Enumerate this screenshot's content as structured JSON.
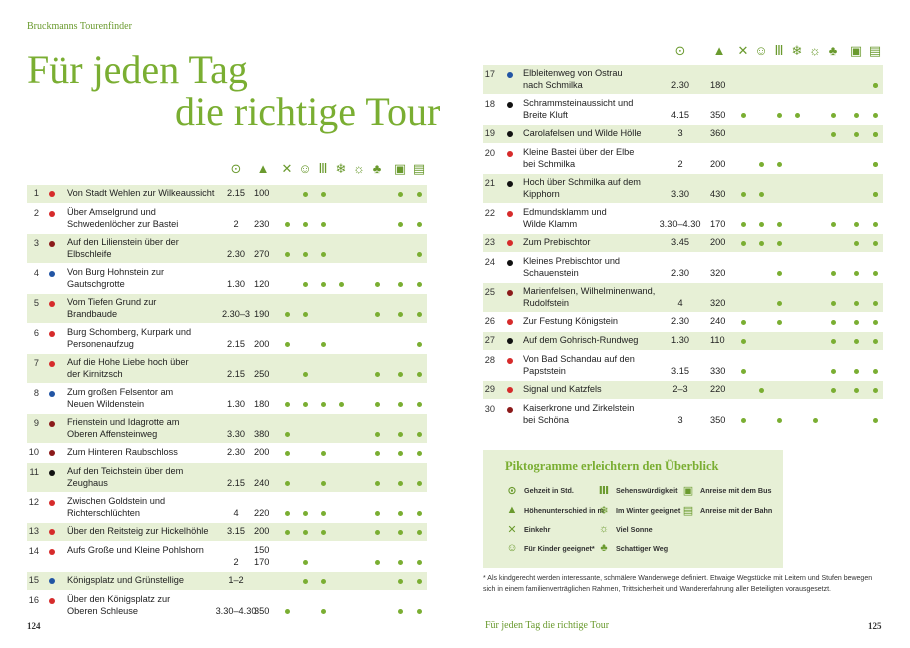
{
  "header": {
    "brand": "Bruckmanns Tourenfinder"
  },
  "title": {
    "line1": "Für jeden Tag",
    "line2": "die richtige Tour"
  },
  "colors": {
    "accent": "#7aae32",
    "shade": "#e7f0d6",
    "bullet_red": "#d62b2b",
    "bullet_blue": "#2255a4",
    "bullet_black": "#111111",
    "bullet_darkred": "#8b1a1a"
  },
  "columns": [
    {
      "icon": "clock-icon",
      "glyph": "⊙"
    },
    {
      "icon": "mountain-icon",
      "glyph": "▲"
    },
    {
      "icon": "fork-knife-icon",
      "glyph": "✕"
    },
    {
      "icon": "smiley-icon",
      "glyph": "☺"
    },
    {
      "icon": "monument-icon",
      "glyph": "Ⅲ"
    },
    {
      "icon": "snowflake-icon",
      "glyph": "❄"
    },
    {
      "icon": "sun-icon",
      "glyph": "☼"
    },
    {
      "icon": "shade-tree-icon",
      "glyph": "♣"
    },
    {
      "icon": "bus-icon",
      "glyph": "▣"
    },
    {
      "icon": "train-icon",
      "glyph": "▤"
    }
  ],
  "tours_left": [
    {
      "nr": "1",
      "bullet": "red",
      "name": [
        "Von Stadt Wehlen zur Wilkeaussicht"
      ],
      "time": "2.15",
      "hm": "100",
      "flags": [
        0,
        1,
        1,
        0,
        0,
        0,
        1,
        0,
        1
      ]
    },
    {
      "nr": "2",
      "bullet": "red",
      "name": [
        "Über Amselgrund und",
        "Schwedenlöcher zur Bastei"
      ],
      "time": "2",
      "hm": "230",
      "flags": [
        1,
        1,
        1,
        0,
        0,
        0,
        1,
        0,
        1
      ]
    },
    {
      "nr": "3",
      "bullet": "darkred",
      "name": [
        "Auf den Lilienstein über der",
        "Elbschleife"
      ],
      "time": "2.30",
      "hm": "270",
      "flags": [
        1,
        1,
        1,
        0,
        0,
        0,
        0,
        0,
        1
      ]
    },
    {
      "nr": "4",
      "bullet": "blue",
      "name": [
        "Von Burg Hohnstein zur",
        "Gautschgrotte"
      ],
      "time": "1.30",
      "hm": "120",
      "flags": [
        0,
        1,
        1,
        1,
        0,
        1,
        1,
        1,
        0
      ]
    },
    {
      "nr": "5",
      "bullet": "red",
      "name": [
        "Vom Tiefen Grund zur",
        "Brandbaude"
      ],
      "time": "2.30–3",
      "hm": "190",
      "flags": [
        1,
        1,
        0,
        0,
        0,
        1,
        1,
        1,
        0
      ]
    },
    {
      "nr": "6",
      "bullet": "red",
      "name": [
        "Burg Schomberg, Kurpark und",
        "Personenaufzug"
      ],
      "time": "2.15",
      "hm": "200",
      "flags": [
        1,
        0,
        1,
        0,
        0,
        0,
        0,
        0,
        1
      ]
    },
    {
      "nr": "7",
      "bullet": "red",
      "name": [
        "Auf die Hohe Liebe hoch über",
        "der Kirnitzsch"
      ],
      "time": "2.15",
      "hm": "250",
      "flags": [
        0,
        1,
        0,
        0,
        0,
        1,
        1,
        1,
        0
      ]
    },
    {
      "nr": "8",
      "bullet": "blue",
      "name": [
        "Zum großen Felsentor am",
        "Neuen Wildenstein"
      ],
      "time": "1.30",
      "hm": "180",
      "flags": [
        1,
        1,
        1,
        1,
        0,
        1,
        1,
        1,
        0
      ]
    },
    {
      "nr": "9",
      "bullet": "darkred",
      "name": [
        "Frienstein und Idagrotte am",
        "Oberen Affensteinweg"
      ],
      "time": "3.30",
      "hm": "380",
      "flags": [
        1,
        0,
        0,
        0,
        0,
        1,
        1,
        1,
        0
      ]
    },
    {
      "nr": "10",
      "bullet": "darkred",
      "name": [
        "Zum Hinteren Raubschloss"
      ],
      "time": "2.30",
      "hm": "200",
      "flags": [
        1,
        0,
        1,
        0,
        0,
        1,
        1,
        1,
        0
      ]
    },
    {
      "nr": "11",
      "bullet": "black",
      "name": [
        "Auf den Teichstein über dem",
        "Zeughaus"
      ],
      "time": "2.15",
      "hm": "240",
      "flags": [
        1,
        0,
        1,
        0,
        0,
        1,
        1,
        1,
        0
      ]
    },
    {
      "nr": "12",
      "bullet": "red",
      "name": [
        "Zwischen Goldstein und",
        "Richterschlüchten"
      ],
      "time": "4",
      "hm": "220",
      "flags": [
        1,
        1,
        1,
        0,
        0,
        1,
        1,
        1,
        0
      ]
    },
    {
      "nr": "13",
      "bullet": "red",
      "name": [
        "Über den Reitsteig zur Hickelhöhle"
      ],
      "time": "3.15",
      "hm": "200",
      "flags": [
        1,
        1,
        1,
        0,
        0,
        1,
        1,
        1,
        0
      ]
    },
    {
      "nr": "14",
      "bullet": "red",
      "name": [
        "Aufs Große und Kleine Pohlshorn"
      ],
      "time": "2",
      "hm": "150\n170",
      "flags": [
        0,
        1,
        0,
        0,
        0,
        1,
        1,
        1,
        0
      ]
    },
    {
      "nr": "15",
      "bullet": "blue",
      "name": [
        "Königsplatz und Grünstellige"
      ],
      "time": "1–2",
      "hm": "",
      "flags": [
        0,
        1,
        1,
        0,
        0,
        0,
        1,
        1,
        0
      ]
    },
    {
      "nr": "16",
      "bullet": "red",
      "name": [
        "Über den Königsplatz zur",
        "Oberen Schleuse"
      ],
      "time": "3.30–4.30",
      "hm": "350",
      "flags": [
        1,
        0,
        1,
        0,
        0,
        0,
        1,
        1,
        0
      ]
    }
  ],
  "tours_right": [
    {
      "nr": "17",
      "bullet": "blue",
      "name": [
        "Elbleitenweg von Ostrau",
        "nach Schmilka"
      ],
      "time": "2.30",
      "hm": "180",
      "flags": [
        0,
        0,
        0,
        0,
        0,
        0,
        0,
        1,
        1
      ]
    },
    {
      "nr": "18",
      "bullet": "black",
      "name": [
        "Schrammsteinaussicht und",
        "Breite Kluft"
      ],
      "time": "4.15",
      "hm": "350",
      "flags": [
        1,
        0,
        1,
        1,
        0,
        1,
        1,
        1,
        0
      ]
    },
    {
      "nr": "19",
      "bullet": "black",
      "name": [
        "Carolafelsen und Wilde Hölle"
      ],
      "time": "3",
      "hm": "360",
      "flags": [
        0,
        0,
        0,
        0,
        0,
        1,
        1,
        1,
        1
      ]
    },
    {
      "nr": "20",
      "bullet": "red",
      "name": [
        "Kleine Bastei über der Elbe",
        "bei Schmilka"
      ],
      "time": "2",
      "hm": "200",
      "flags": [
        0,
        1,
        1,
        0,
        0,
        0,
        0,
        1,
        1
      ]
    },
    {
      "nr": "21",
      "bullet": "black",
      "name": [
        "Hoch über Schmilka auf dem",
        "Kipphorn"
      ],
      "time": "3.30",
      "hm": "430",
      "flags": [
        1,
        1,
        0,
        0,
        0,
        0,
        0,
        1,
        1
      ]
    },
    {
      "nr": "22",
      "bullet": "red",
      "name": [
        "Edmundsklamm und",
        "Wilde Klamm"
      ],
      "time": "3.30–4.30",
      "hm": "170",
      "flags": [
        1,
        1,
        1,
        0,
        0,
        1,
        1,
        1,
        0
      ]
    },
    {
      "nr": "23",
      "bullet": "red",
      "name": [
        "Zum Prebischtor"
      ],
      "time": "3.45",
      "hm": "200",
      "flags": [
        1,
        1,
        1,
        0,
        0,
        0,
        1,
        1,
        0
      ]
    },
    {
      "nr": "24",
      "bullet": "black",
      "name": [
        "Kleines Prebischtor und",
        "Schauenstein"
      ],
      "time": "2.30",
      "hm": "320",
      "flags": [
        0,
        0,
        1,
        0,
        0,
        1,
        1,
        1,
        0
      ]
    },
    {
      "nr": "25",
      "bullet": "darkred",
      "name": [
        "Marienfelsen, Wilhelminenwand,",
        "Rudolfstein"
      ],
      "time": "4",
      "hm": "320",
      "flags": [
        0,
        0,
        1,
        0,
        0,
        1,
        1,
        1,
        0
      ]
    },
    {
      "nr": "26",
      "bullet": "red",
      "name": [
        "Zur Festung Königstein"
      ],
      "time": "2.30",
      "hm": "240",
      "flags": [
        1,
        0,
        1,
        0,
        0,
        1,
        1,
        1,
        0
      ]
    },
    {
      "nr": "27",
      "bullet": "black",
      "name": [
        "Auf dem Gohrisch-Rundweg"
      ],
      "time": "1.30",
      "hm": "110",
      "flags": [
        1,
        0,
        0,
        0,
        0,
        1,
        1,
        1,
        0
      ]
    },
    {
      "nr": "28",
      "bullet": "red",
      "name": [
        "Von Bad Schandau auf den",
        "Papststein"
      ],
      "time": "3.15",
      "hm": "330",
      "flags": [
        1,
        0,
        0,
        0,
        0,
        1,
        1,
        1,
        0
      ]
    },
    {
      "nr": "29",
      "bullet": "red",
      "name": [
        "Signal und Katzfels"
      ],
      "time": "2–3",
      "hm": "220",
      "flags": [
        0,
        1,
        0,
        0,
        0,
        1,
        1,
        1,
        0
      ]
    },
    {
      "nr": "30",
      "bullet": "darkred",
      "name": [
        "Kaiserkrone und Zirkelstein",
        "bei Schöna"
      ],
      "time": "3",
      "hm": "350",
      "flags": [
        1,
        0,
        1,
        0,
        1,
        0,
        0,
        1,
        0
      ]
    }
  ],
  "legend": {
    "title": "Piktogramme erleichtern den Überblick",
    "items": [
      {
        "icon": "clock-icon",
        "glyph": "⊙",
        "label": "Gehzeit in Std."
      },
      {
        "icon": "mountain-icon",
        "glyph": "▲",
        "label": "Höhenunterschied in m"
      },
      {
        "icon": "fork-knife-icon",
        "glyph": "✕",
        "label": "Einkehr"
      },
      {
        "icon": "smiley-icon",
        "glyph": "☺",
        "label": "Für Kinder geeignet*"
      },
      {
        "icon": "monument-icon",
        "glyph": "Ⅲ",
        "label": "Sehenswürdigkeit"
      },
      {
        "icon": "snowflake-icon",
        "glyph": "❄",
        "label": "Im Winter geeignet"
      },
      {
        "icon": "sun-icon",
        "glyph": "☼",
        "label": "Viel Sonne"
      },
      {
        "icon": "shade-tree-icon",
        "glyph": "♣",
        "label": "Schattiger Weg"
      },
      {
        "icon": "bus-icon",
        "glyph": "▣",
        "label": "Anreise mit dem Bus"
      },
      {
        "icon": "train-icon",
        "glyph": "▤",
        "label": "Anreise mit der Bahn"
      }
    ]
  },
  "footnote": "* Als kindgerecht werden interessante, schmälere Wanderwege definiert. Etwaige Wegstücke mit Lei­tern und Stufen bewegen sich in einem familienverträglichen Rahmen, Trittsicherheit und Wanderer­fahrung aller Beteiligten vorausgesetzt.",
  "footer": {
    "page_left": "124",
    "page_right": "125",
    "center": "Für jeden Tag die richtige Tour"
  }
}
